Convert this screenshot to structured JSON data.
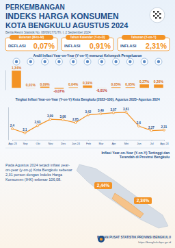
{
  "header": {
    "title": [
      "PERKEMBANGAN",
      "INDEKS HARGA KONSUMEN",
      "KOTA BENGKULU AGUSTUS 2024"
    ],
    "subtitle": "Berita Resmi Statistik No. 08/09/1771/Th. I, 2 September 2024"
  },
  "summary": [
    {
      "label": "Bulanan (M-to-M)",
      "status": "DEFLASI",
      "value": "0,07%"
    },
    {
      "label": "Tahun Kalender (Y-to-D)",
      "status": "INFLASI",
      "value": "0,91%"
    },
    {
      "label": "Tahunan (Y-on-Y)",
      "status": "INFLASI",
      "value": "2,31%"
    }
  ],
  "chart_data": [
    {
      "type": "bar",
      "title": "Andil Inflasi Year-on-Year (Y-on-Y) menurut Kelompok Pengeluaran",
      "categories": [
        null,
        null,
        null,
        null,
        null,
        null,
        null,
        null,
        null,
        null,
        null
      ],
      "values": [
        1.34,
        0.01,
        0.09,
        -0.07,
        0.04,
        0.19,
        -0.01,
        0.05,
        0.05,
        0.27,
        0.26
      ],
      "value_labels": [
        "1,34%",
        "0,01%",
        "0,09%",
        "-0,07%",
        "0,04%",
        "0,19%",
        "-0,01%",
        "0,05%",
        "0,05%",
        "0,27%",
        "0,26%"
      ],
      "color": "#f39325",
      "ylim": [
        -0.15,
        1.4
      ],
      "yticks": [],
      "data_labels": true,
      "tick_labels": false
    },
    {
      "type": "line",
      "title": "Tingkat Inflasi Year-on-Year (Y-on-Y) Kota Bengkulu (2022=100), Agustus 2023–Agustus 2024",
      "categories": [
        "Agu 23",
        "Sep",
        "Okt",
        "Nov",
        "Des",
        "Jan 24",
        "Feb",
        "Mar",
        "Apr",
        "Mei",
        "Jun",
        "Jul",
        "Agu 24"
      ],
      "values": [
        2.4,
        2.1,
        2.63,
        3.09,
        3.06,
        2.85,
        3.42,
        3.49,
        3.57,
        3.61,
        2.6,
        2.27,
        2.31
      ],
      "value_labels": [
        "2,4",
        "2,1",
        "2,63",
        "3,09",
        "3,06",
        "2,85",
        "3,42",
        "3,49",
        "3,57",
        "3,61",
        "2,6",
        "2,27",
        "2,31"
      ],
      "color": "#f39325",
      "ylim": [
        1.6,
        4.0
      ],
      "yticks": [],
      "data_labels": true,
      "tick_labels": "x",
      "marker": "circle"
    }
  ],
  "note": "Pada Agustus 2024 terjadi inflasi year-on-year (y-on-y) Kota Bengkulu sebesar 2,31 persen dengan Indeks Harga Konsumen (IHK) sebesar 106,08.",
  "map": {
    "title": "Inflasi Year-on-Year (Y-on-Y) Tertinggi dan Terendah di Provinsi Bengkulu",
    "labels": [
      "2,44%",
      "2,34%"
    ]
  },
  "footer": {
    "org": "BADAN PUSAT STATISTIK PROVINSI BENGKULU",
    "url": "https://bengkulu.bps.go.id"
  }
}
